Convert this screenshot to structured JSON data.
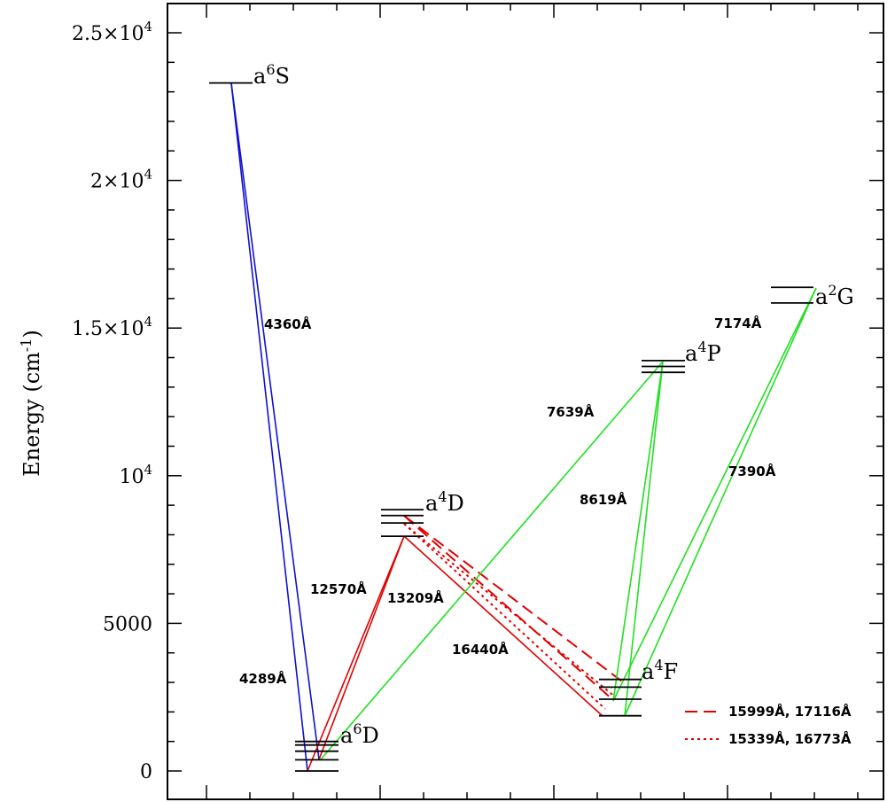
{
  "colors": {
    "blue": "#1010d0",
    "red": "#e00000",
    "green": "#20e020",
    "axis": "#000000"
  },
  "axis": {
    "ylabel_main": "Energy (cm",
    "ylabel_sup": "-1",
    "ylabel_close": ")",
    "y_ticks": [
      {
        "value": 0,
        "base": "0",
        "sup": ""
      },
      {
        "value": 5000,
        "base": "5000",
        "sup": ""
      },
      {
        "value": 10000,
        "base": "10",
        "sup": "4"
      },
      {
        "value": 15000,
        "base": "1.5×10",
        "sup": "4"
      },
      {
        "value": 20000,
        "base": "2×10",
        "sup": "4"
      },
      {
        "value": 25000,
        "base": "2.5×10",
        "sup": "4"
      }
    ],
    "ylim": [
      0,
      25000
    ]
  },
  "levels": [
    {
      "id": "a6S",
      "label": "a",
      "sup": "6",
      "term": "S",
      "energies": [
        23300
      ]
    },
    {
      "id": "a6D",
      "label": "a",
      "sup": "6",
      "term": "D",
      "energies": [
        0,
        380,
        670,
        880,
        1000
      ]
    },
    {
      "id": "a4D",
      "label": "a",
      "sup": "4",
      "term": "D",
      "energies": [
        7950,
        8400,
        8650,
        8850
      ]
    },
    {
      "id": "a4F",
      "label": "a",
      "sup": "4",
      "term": "F",
      "energies": [
        1870,
        2430,
        2840,
        3100
      ]
    },
    {
      "id": "a4P",
      "label": "a",
      "sup": "4",
      "term": "P",
      "energies": [
        13500,
        13700,
        13900
      ]
    },
    {
      "id": "a2G",
      "label": "a",
      "sup": "2",
      "term": "G",
      "energies": [
        15850,
        16380
      ]
    }
  ],
  "wavelength_labels": {
    "w4360": "4360Å",
    "w4289": "4289Å",
    "w12570": "12570Å",
    "w13209": "13209Å",
    "w16440": "16440Å",
    "w7639": "7639Å",
    "w8619": "8619Å",
    "w7174": "7174Å",
    "w7390": "7390Å"
  },
  "legend": {
    "dashed_label": "15999Å, 17116Å",
    "dotted_label": "15339Å, 16773Å"
  }
}
